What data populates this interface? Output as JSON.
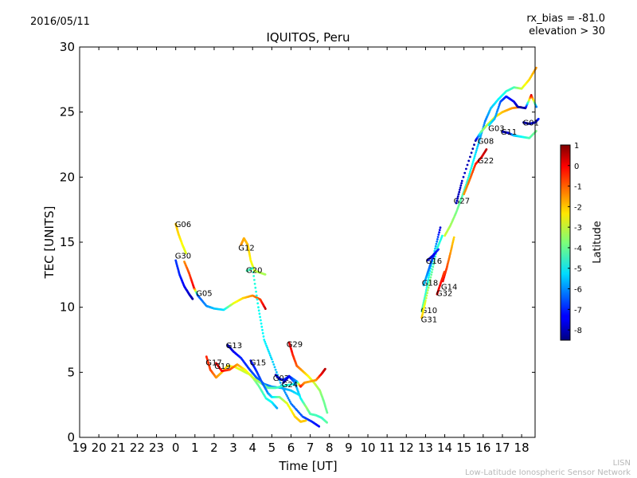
{
  "header": {
    "date": "2016/05/11",
    "rx_bias": "rx_bias = -81.0",
    "elevation": "elevation > 30"
  },
  "footer": {
    "line1": "LISN",
    "line2": "Low-Latitude Ionospheric Sensor Network"
  },
  "chart_data": {
    "type": "scatter",
    "title": "IQUITOS, Peru",
    "xlabel": "Time [UT]",
    "ylabel": "TEC [UNITS]",
    "ylim": [
      0,
      30
    ],
    "x_ticks": [
      "19",
      "20",
      "21",
      "22",
      "23",
      "0",
      "1",
      "2",
      "3",
      "4",
      "5",
      "6",
      "7",
      "8",
      "9",
      "10",
      "11",
      "12",
      "13",
      "14",
      "15",
      "16",
      "17",
      "18"
    ],
    "y_ticks": [
      0,
      5,
      10,
      15,
      20,
      25,
      30
    ],
    "colorbar": {
      "label": "Latitude",
      "range": [
        -8.5,
        1
      ],
      "ticks": [
        1,
        0,
        -1,
        -2,
        -3,
        -4,
        -5,
        -6,
        -7,
        -8
      ]
    },
    "grid": false,
    "series": [
      {
        "name": "G06",
        "label_at": [
          0.0,
          16.4
        ],
        "points": [
          [
            0.0,
            16.4,
            -2.0
          ],
          [
            0.15,
            15.6,
            -2.2
          ],
          [
            0.35,
            14.8,
            -2.6
          ],
          [
            0.55,
            14.1,
            -2.9
          ]
        ]
      },
      {
        "name": "G30",
        "label_at": [
          0.0,
          14.0
        ],
        "points": [
          [
            0.0,
            13.6,
            -6.8
          ],
          [
            0.2,
            12.5,
            -7.0
          ],
          [
            0.45,
            11.6,
            -7.4
          ],
          [
            0.7,
            11.0,
            -7.8
          ],
          [
            0.9,
            10.6,
            -8.2
          ]
        ]
      },
      {
        "name": "G05",
        "label_at": [
          1.1,
          11.1
        ],
        "points": [
          [
            0.45,
            13.5,
            -1.5
          ],
          [
            0.7,
            12.6,
            -0.8
          ],
          [
            0.95,
            11.5,
            0.0
          ],
          [
            1.15,
            10.9,
            -6.5
          ],
          [
            1.6,
            10.1,
            -6.0
          ],
          [
            2.0,
            9.9,
            -5.5
          ],
          [
            2.5,
            9.8,
            -5.2
          ],
          [
            3.0,
            10.3,
            -2.8
          ],
          [
            3.5,
            10.7,
            -2.2
          ],
          [
            4.0,
            10.9,
            -1.5
          ],
          [
            4.4,
            10.6,
            -0.8
          ],
          [
            4.7,
            9.8,
            0.5
          ]
        ]
      },
      {
        "name": "G12",
        "label_at": [
          3.3,
          14.6
        ],
        "points": [
          [
            3.4,
            14.8,
            -1.5
          ],
          [
            3.55,
            15.3,
            -1.8
          ],
          [
            3.75,
            14.8,
            -2.0
          ],
          [
            3.9,
            13.6,
            -2.5
          ],
          [
            4.1,
            12.8,
            -3.0
          ],
          [
            4.3,
            12.7,
            -3.2
          ],
          [
            4.7,
            12.5,
            -3.4
          ]
        ]
      },
      {
        "name": "G20",
        "label_at": [
          3.7,
          12.9
        ],
        "points": [
          [
            3.7,
            12.8,
            -4.2
          ],
          [
            4.0,
            13.0,
            -4.5
          ],
          [
            4.3,
            10.0,
            -4.8
          ],
          [
            4.6,
            7.5,
            -5.0
          ],
          [
            5.0,
            6.0,
            -5.3
          ],
          [
            5.5,
            4.0,
            -5.8
          ],
          [
            6.0,
            2.6,
            -6.2
          ],
          [
            6.6,
            1.6,
            -6.6
          ],
          [
            7.1,
            1.2,
            -7.0
          ],
          [
            7.5,
            0.8,
            -7.3
          ]
        ]
      },
      {
        "name": "G13",
        "label_at": [
          2.65,
          7.1
        ],
        "points": [
          [
            2.7,
            7.1,
            -8.3
          ],
          [
            3.0,
            6.6,
            -7.5
          ],
          [
            3.4,
            6.1,
            -7.0
          ],
          [
            3.8,
            5.3,
            -6.8
          ],
          [
            4.2,
            4.6,
            -6.5
          ],
          [
            4.6,
            4.1,
            -6.2
          ],
          [
            5.0,
            3.9,
            -6.0
          ],
          [
            5.5,
            3.8,
            -5.8
          ],
          [
            6.0,
            3.6,
            -5.5
          ],
          [
            6.5,
            3.2,
            -5.0
          ]
        ]
      },
      {
        "name": "G17",
        "label_at": [
          1.6,
          5.8
        ],
        "points": [
          [
            1.6,
            6.2,
            -0.5
          ],
          [
            1.8,
            5.2,
            -0.8
          ],
          [
            2.1,
            4.6,
            -1.5
          ],
          [
            2.4,
            5.0,
            -2.0
          ],
          [
            2.7,
            5.5,
            -2.3
          ],
          [
            3.1,
            5.4,
            -2.6
          ],
          [
            3.5,
            5.1,
            -3.0
          ],
          [
            3.9,
            4.8,
            -3.4
          ],
          [
            4.3,
            4.0,
            -4.0
          ],
          [
            4.7,
            3.0,
            -4.6
          ],
          [
            5.0,
            2.7,
            -5.0
          ],
          [
            5.3,
            2.2,
            -5.8
          ]
        ]
      },
      {
        "name": "G19",
        "label_at": [
          2.05,
          5.5
        ],
        "points": [
          [
            2.1,
            5.7,
            0.2
          ],
          [
            2.4,
            5.1,
            -0.2
          ],
          [
            2.8,
            5.2,
            -0.8
          ],
          [
            3.2,
            5.6,
            -1.6
          ],
          [
            3.6,
            5.2,
            -2.5
          ],
          [
            4.0,
            4.6,
            -3.0
          ],
          [
            4.4,
            4.2,
            -3.6
          ],
          [
            4.8,
            3.8,
            -4.0
          ],
          [
            5.2,
            3.8,
            -4.3
          ],
          [
            5.7,
            4.0,
            -4.6
          ],
          [
            6.2,
            4.1,
            -4.8
          ]
        ]
      },
      {
        "name": "G15",
        "label_at": [
          3.9,
          5.8
        ],
        "points": [
          [
            3.9,
            5.9,
            -7.2
          ],
          [
            4.2,
            5.1,
            -6.9
          ],
          [
            4.5,
            4.2,
            -6.5
          ],
          [
            4.8,
            3.4,
            -6.0
          ],
          [
            5.0,
            3.1,
            -5.3
          ],
          [
            5.4,
            3.1,
            -3.8
          ],
          [
            5.8,
            2.6,
            -2.8
          ],
          [
            6.2,
            1.6,
            -2.2
          ],
          [
            6.5,
            1.2,
            -2.0
          ],
          [
            6.8,
            1.3,
            -2.1
          ]
        ]
      },
      {
        "name": "G29",
        "label_at": [
          5.8,
          7.2
        ],
        "points": [
          [
            5.9,
            7.3,
            0.2
          ],
          [
            6.1,
            6.3,
            -0.5
          ],
          [
            6.3,
            5.5,
            -1.0
          ],
          [
            6.6,
            5.1,
            -1.8
          ],
          [
            6.9,
            4.7,
            -2.5
          ],
          [
            7.2,
            4.2,
            -3.0
          ],
          [
            7.5,
            3.6,
            -3.5
          ],
          [
            7.7,
            2.8,
            -3.9
          ],
          [
            7.9,
            1.8,
            -4.0
          ]
        ]
      },
      {
        "name": "G02",
        "label_at": [
          5.1,
          4.6
        ],
        "points": [
          [
            5.2,
            4.8,
            -8.0
          ],
          [
            5.4,
            4.5,
            -7.5
          ],
          [
            5.6,
            4.4,
            -7.0
          ],
          [
            5.9,
            4.7,
            -6.6
          ],
          [
            6.3,
            4.3,
            -6.0
          ],
          [
            6.5,
            3.9,
            -0.3
          ],
          [
            6.7,
            4.2,
            -1.5
          ],
          [
            7.0,
            4.3,
            -1.8
          ],
          [
            7.3,
            4.4,
            -1.6
          ],
          [
            7.6,
            4.9,
            0.0
          ],
          [
            7.8,
            5.3,
            0.5
          ]
        ]
      },
      {
        "name": "G24",
        "label_at": [
          5.55,
          4.1
        ],
        "points": [
          [
            5.6,
            4.2,
            -8.2
          ],
          [
            5.9,
            4.7,
            -7.4
          ],
          [
            6.2,
            4.2,
            -6.0
          ],
          [
            6.5,
            3.0,
            -5.0
          ],
          [
            6.8,
            2.3,
            -3.5
          ],
          [
            7.0,
            1.8,
            -4.2
          ],
          [
            7.3,
            1.7,
            -4.3
          ],
          [
            7.6,
            1.5,
            -4.5
          ],
          [
            7.9,
            1.1,
            -4.0
          ]
        ]
      },
      {
        "name": "G10",
        "label_at": [
          12.8,
          9.8
        ],
        "points": [
          [
            12.8,
            9.7,
            -4.0
          ],
          [
            13.0,
            11.0,
            -4.5
          ],
          [
            13.2,
            12.6,
            -5.0
          ],
          [
            13.5,
            14.5,
            -5.5
          ],
          [
            13.8,
            16.3,
            -8.0
          ]
        ]
      },
      {
        "name": "G31",
        "label_at": [
          12.8,
          9.1
        ],
        "points": [
          [
            12.8,
            9.2,
            -2.0
          ],
          [
            13.0,
            10.5,
            -3.0
          ],
          [
            13.3,
            12.5,
            -4.0
          ],
          [
            13.6,
            14.5,
            -4.5
          ],
          [
            13.9,
            15.6,
            -4.8
          ]
        ]
      },
      {
        "name": "G18",
        "label_at": [
          12.85,
          11.9
        ],
        "points": [
          [
            12.9,
            11.7,
            -5.5
          ],
          [
            13.1,
            12.6,
            -6.0
          ],
          [
            13.3,
            13.5,
            -6.5
          ],
          [
            13.5,
            14.2,
            -7.0
          ]
        ]
      },
      {
        "name": "G16",
        "label_at": [
          13.05,
          13.6
        ],
        "points": [
          [
            13.1,
            13.6,
            -8.0
          ],
          [
            13.4,
            14.0,
            -7.5
          ],
          [
            13.7,
            14.5,
            -6.8
          ]
        ]
      },
      {
        "name": "G14",
        "label_at": [
          13.85,
          11.6
        ],
        "points": [
          [
            13.9,
            12.0,
            0.0
          ],
          [
            14.1,
            13.0,
            -0.8
          ],
          [
            14.3,
            14.2,
            -1.6
          ],
          [
            14.5,
            15.5,
            -2.2
          ]
        ]
      },
      {
        "name": "G32",
        "label_at": [
          13.6,
          11.1
        ],
        "points": [
          [
            13.6,
            11.0,
            0.2
          ],
          [
            13.8,
            11.9,
            -0.3
          ],
          [
            14.0,
            12.8,
            -0.8
          ]
        ]
      },
      {
        "name": "G27",
        "label_at": [
          14.5,
          18.2
        ],
        "points": [
          [
            14.0,
            15.5,
            -3.0
          ],
          [
            14.3,
            16.3,
            -3.4
          ],
          [
            14.6,
            17.3,
            -3.8
          ],
          [
            14.9,
            18.5,
            -4.2
          ],
          [
            15.2,
            19.8,
            -4.6
          ],
          [
            15.5,
            21.3,
            -5.0
          ],
          [
            15.8,
            22.8,
            -5.6
          ],
          [
            16.1,
            24.3,
            -6.2
          ],
          [
            16.4,
            25.3,
            -5.5
          ],
          [
            16.8,
            26.0,
            -5.0
          ],
          [
            17.2,
            26.6,
            -4.6
          ],
          [
            17.6,
            26.9,
            -4.3
          ],
          [
            18.0,
            26.8,
            -3.0
          ],
          [
            18.4,
            27.5,
            -2.2
          ],
          [
            18.8,
            28.5,
            -1.5
          ]
        ]
      },
      {
        "name": "G22",
        "label_at": [
          15.75,
          21.3
        ],
        "points": [
          [
            15.0,
            18.7,
            -1.6
          ],
          [
            15.3,
            19.8,
            -1.2
          ],
          [
            15.6,
            21.0,
            -0.5
          ],
          [
            15.9,
            21.5,
            0.0
          ],
          [
            16.2,
            22.2,
            0.5
          ]
        ]
      },
      {
        "name": "G08",
        "label_at": [
          15.75,
          22.8
        ],
        "points": [
          [
            14.6,
            18.0,
            -8.0
          ],
          [
            14.9,
            19.7,
            -7.8
          ],
          [
            15.6,
            22.8,
            -8.2
          ],
          [
            15.9,
            23.5,
            -4.0
          ],
          [
            16.2,
            24.0,
            -3.2
          ],
          [
            16.6,
            24.6,
            -2.6
          ],
          [
            17.0,
            25.0,
            -2.0
          ],
          [
            17.5,
            25.3,
            -1.6
          ],
          [
            18.0,
            25.4,
            -1.2
          ]
        ]
      },
      {
        "name": "G03",
        "label_at": [
          16.3,
          23.8
        ],
        "points": [
          [
            16.3,
            24.0,
            -5.0
          ],
          [
            16.6,
            24.5,
            -5.6
          ],
          [
            16.9,
            25.8,
            -6.5
          ],
          [
            17.2,
            26.2,
            -7.0
          ],
          [
            17.6,
            25.8,
            -7.5
          ],
          [
            17.8,
            25.4,
            -8.0
          ],
          [
            18.2,
            25.3,
            -8.2
          ],
          [
            18.5,
            26.3,
            0.2
          ],
          [
            18.8,
            25.3,
            -6.8
          ]
        ]
      },
      {
        "name": "G11",
        "label_at": [
          16.95,
          23.5
        ],
        "points": [
          [
            17.0,
            23.5,
            -8.0
          ],
          [
            17.3,
            23.4,
            -7.8
          ],
          [
            17.6,
            23.2,
            -5.5
          ],
          [
            18.0,
            23.1,
            -5.0
          ],
          [
            18.4,
            23.0,
            -4.2
          ],
          [
            18.8,
            23.6,
            -3.8
          ]
        ]
      },
      {
        "name": "G01",
        "label_at": [
          18.1,
          24.2
        ],
        "points": [
          [
            18.1,
            24.2,
            -8.2
          ],
          [
            18.4,
            24.1,
            -8.0
          ],
          [
            18.7,
            24.2,
            -7.5
          ],
          [
            18.9,
            24.5,
            -7.0
          ]
        ]
      }
    ]
  }
}
